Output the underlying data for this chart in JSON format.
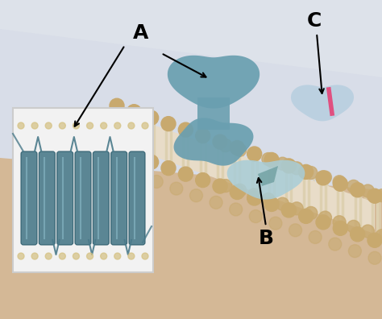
{
  "title": "",
  "figsize": [
    4.74,
    3.96
  ],
  "dpi": 100,
  "bg_color": "#d8dde8",
  "label_A": "A",
  "label_B": "B",
  "label_C": "C",
  "label_fontsize": 18,
  "label_fontweight": "bold",
  "bilayer_color": "#c8a96e",
  "bilayer_tail_color": "#e8dcc8",
  "protein_integral_color": "#6a9fb0",
  "protein_peripheral_color": "#a8cdd8",
  "inset_bg": "#f0f0f0",
  "arrow_color": "black",
  "helix_color": "#4a7a8a",
  "pink_accent": "#e05080"
}
